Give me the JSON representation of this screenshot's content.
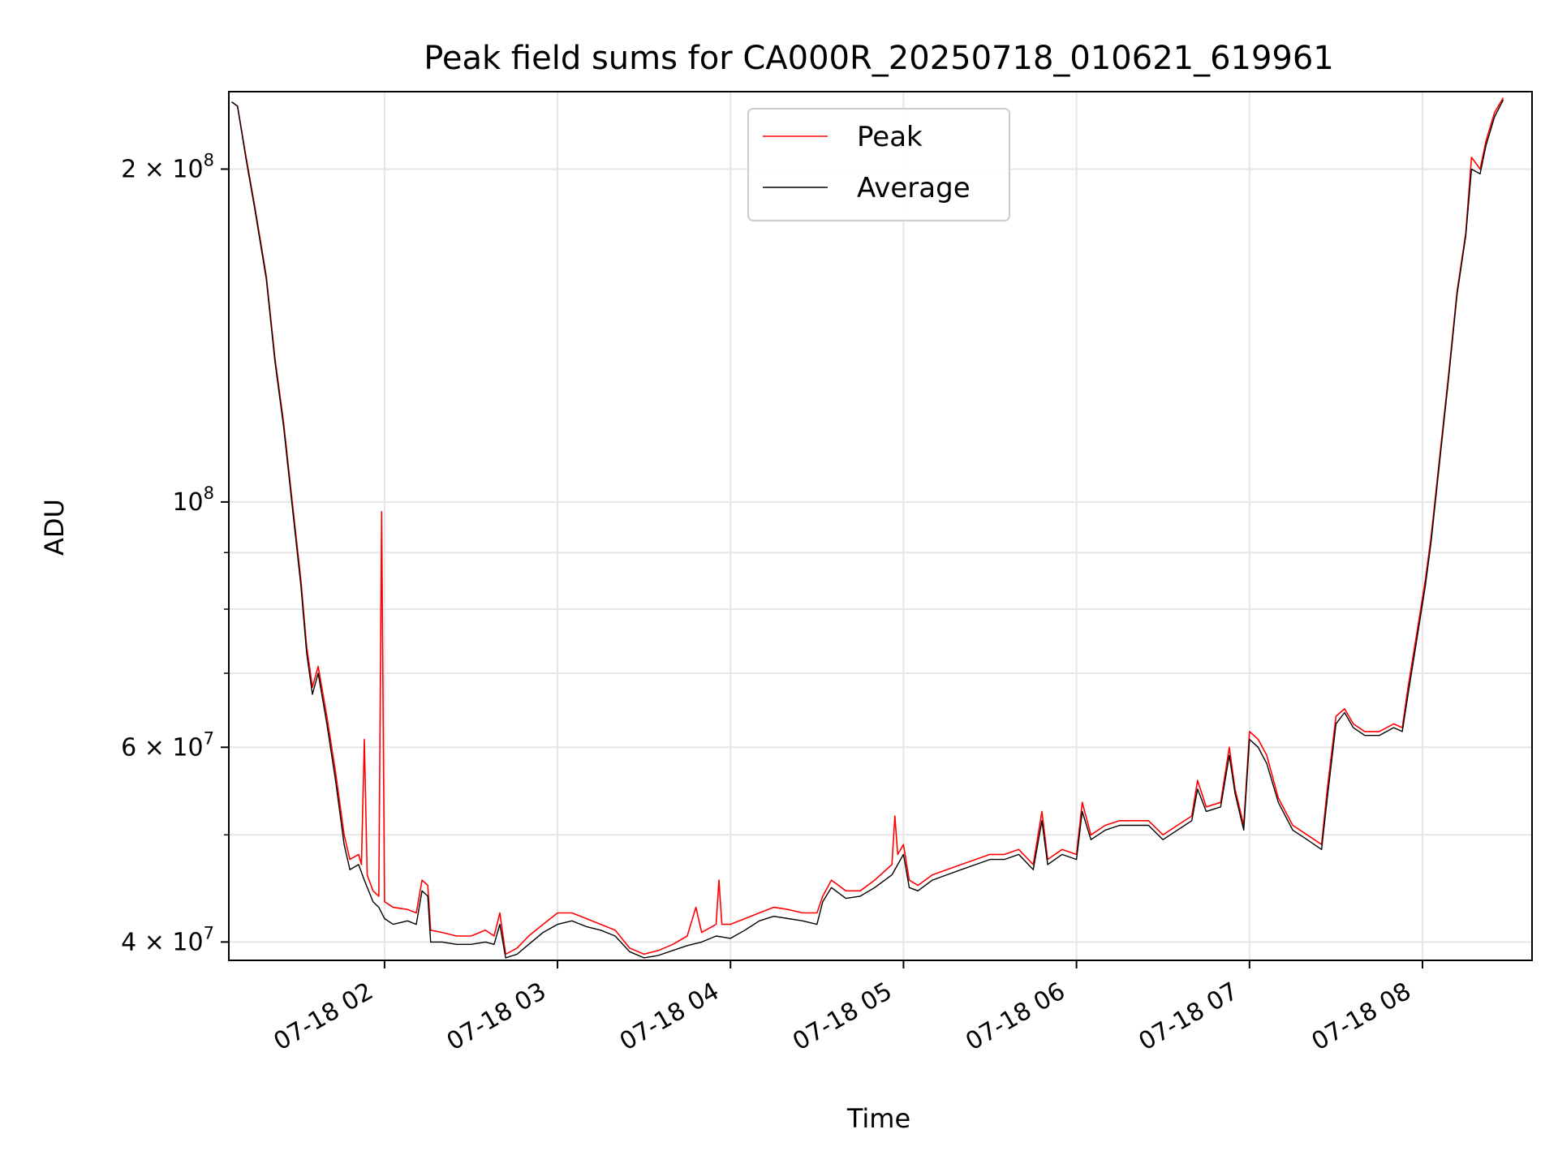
{
  "chart_data": {
    "type": "line",
    "title": "Peak field sums for CA000R_20250718_010621_619961",
    "xlabel": "Time",
    "ylabel": "ADU",
    "yscale": "log",
    "grid": true,
    "legend_position": "top-center",
    "xlim": [
      "2025-07-18 01:06",
      "2025-07-18 08:38"
    ],
    "ylim": [
      38500000,
      235000000
    ],
    "x_ticks": [
      "07-18 02",
      "07-18 03",
      "07-18 04",
      "07-18 05",
      "07-18 06",
      "07-18 07",
      "07-18 08"
    ],
    "y_ticks": [
      {
        "value": 40000000,
        "mantissa": "4",
        "exponent": "7"
      },
      {
        "value": 60000000,
        "mantissa": "6",
        "exponent": "7"
      },
      {
        "value": 100000000,
        "mantissa": "",
        "exponent": "8"
      },
      {
        "value": 200000000,
        "mantissa": "2",
        "exponent": "8"
      }
    ],
    "series": [
      {
        "name": "Peak",
        "color": "#ff0000",
        "points": [
          [
            "01:07",
            230000000
          ],
          [
            "01:09",
            228000000
          ],
          [
            "01:12",
            205000000
          ],
          [
            "01:15",
            185000000
          ],
          [
            "01:19",
            160000000
          ],
          [
            "01:22",
            135000000
          ],
          [
            "01:25",
            118000000
          ],
          [
            "01:28",
            100000000
          ],
          [
            "01:31",
            85000000
          ],
          [
            "01:33",
            74000000
          ],
          [
            "01:35",
            68000000
          ],
          [
            "01:37",
            71000000
          ],
          [
            "01:40",
            64000000
          ],
          [
            "01:43",
            57000000
          ],
          [
            "01:46",
            50000000
          ],
          [
            "01:48",
            47500000
          ],
          [
            "01:51",
            48000000
          ],
          [
            "01:52",
            47000000
          ],
          [
            "01:53",
            61000000
          ],
          [
            "01:54",
            46000000
          ],
          [
            "01:56",
            44500000
          ],
          [
            "01:58",
            44000000
          ],
          [
            "01:59",
            98000000
          ],
          [
            "02:00",
            43500000
          ],
          [
            "02:03",
            43000000
          ],
          [
            "02:08",
            42800000
          ],
          [
            "02:11",
            42500000
          ],
          [
            "02:13",
            45500000
          ],
          [
            "02:15",
            45000000
          ],
          [
            "02:16",
            41000000
          ],
          [
            "02:20",
            40800000
          ],
          [
            "02:25",
            40500000
          ],
          [
            "02:30",
            40500000
          ],
          [
            "02:35",
            41000000
          ],
          [
            "02:38",
            40500000
          ],
          [
            "02:40",
            42500000
          ],
          [
            "02:42",
            39000000
          ],
          [
            "02:46",
            39500000
          ],
          [
            "02:50",
            40500000
          ],
          [
            "02:55",
            41500000
          ],
          [
            "03:00",
            42500000
          ],
          [
            "03:05",
            42500000
          ],
          [
            "03:10",
            42000000
          ],
          [
            "03:15",
            41500000
          ],
          [
            "03:20",
            41000000
          ],
          [
            "03:25",
            39500000
          ],
          [
            "03:30",
            39000000
          ],
          [
            "03:35",
            39300000
          ],
          [
            "03:40",
            39800000
          ],
          [
            "03:45",
            40500000
          ],
          [
            "03:48",
            43000000
          ],
          [
            "03:50",
            40800000
          ],
          [
            "03:55",
            41500000
          ],
          [
            "03:56",
            45500000
          ],
          [
            "03:57",
            41500000
          ],
          [
            "04:00",
            41500000
          ],
          [
            "04:05",
            42000000
          ],
          [
            "04:10",
            42500000
          ],
          [
            "04:15",
            43000000
          ],
          [
            "04:20",
            42800000
          ],
          [
            "04:25",
            42500000
          ],
          [
            "04:30",
            42500000
          ],
          [
            "04:32",
            44000000
          ],
          [
            "04:35",
            45500000
          ],
          [
            "04:40",
            44500000
          ],
          [
            "04:45",
            44500000
          ],
          [
            "04:50",
            45500000
          ],
          [
            "04:56",
            47000000
          ],
          [
            "04:57",
            52000000
          ],
          [
            "04:58",
            48000000
          ],
          [
            "05:00",
            49000000
          ],
          [
            "05:02",
            45500000
          ],
          [
            "05:05",
            45000000
          ],
          [
            "05:10",
            46000000
          ],
          [
            "05:15",
            46500000
          ],
          [
            "05:20",
            47000000
          ],
          [
            "05:25",
            47500000
          ],
          [
            "05:30",
            48000000
          ],
          [
            "05:35",
            48000000
          ],
          [
            "05:40",
            48500000
          ],
          [
            "05:45",
            47000000
          ],
          [
            "05:48",
            52500000
          ],
          [
            "05:50",
            47500000
          ],
          [
            "05:55",
            48500000
          ],
          [
            "06:00",
            48000000
          ],
          [
            "06:02",
            53500000
          ],
          [
            "06:05",
            50000000
          ],
          [
            "06:10",
            51000000
          ],
          [
            "06:15",
            51500000
          ],
          [
            "06:20",
            51500000
          ],
          [
            "06:25",
            51500000
          ],
          [
            "06:30",
            50000000
          ],
          [
            "06:35",
            51000000
          ],
          [
            "06:40",
            52000000
          ],
          [
            "06:42",
            56000000
          ],
          [
            "06:45",
            53000000
          ],
          [
            "06:50",
            53500000
          ],
          [
            "06:53",
            60000000
          ],
          [
            "06:55",
            55000000
          ],
          [
            "06:58",
            51000000
          ],
          [
            "07:00",
            62000000
          ],
          [
            "07:03",
            61000000
          ],
          [
            "07:06",
            59000000
          ],
          [
            "07:10",
            54000000
          ],
          [
            "07:15",
            51000000
          ],
          [
            "07:20",
            50000000
          ],
          [
            "07:25",
            49000000
          ],
          [
            "07:27",
            55000000
          ],
          [
            "07:30",
            64000000
          ],
          [
            "07:33",
            65000000
          ],
          [
            "07:36",
            63000000
          ],
          [
            "07:40",
            62000000
          ],
          [
            "07:45",
            62000000
          ],
          [
            "07:50",
            63000000
          ],
          [
            "07:53",
            62500000
          ],
          [
            "07:55",
            68000000
          ],
          [
            "07:58",
            76000000
          ],
          [
            "08:01",
            85000000
          ],
          [
            "08:03",
            93000000
          ],
          [
            "08:06",
            110000000
          ],
          [
            "08:09",
            130000000
          ],
          [
            "08:12",
            155000000
          ],
          [
            "08:15",
            175000000
          ],
          [
            "08:17",
            205000000
          ],
          [
            "08:20",
            200000000
          ],
          [
            "08:22",
            212000000
          ],
          [
            "08:25",
            225000000
          ],
          [
            "08:28",
            232000000
          ]
        ]
      },
      {
        "name": "Average",
        "color": "#000000",
        "points": [
          [
            "01:07",
            230000000
          ],
          [
            "01:09",
            228000000
          ],
          [
            "01:12",
            204000000
          ],
          [
            "01:15",
            184000000
          ],
          [
            "01:19",
            159000000
          ],
          [
            "01:22",
            134000000
          ],
          [
            "01:25",
            117000000
          ],
          [
            "01:28",
            99000000
          ],
          [
            "01:31",
            84000000
          ],
          [
            "01:33",
            73000000
          ],
          [
            "01:35",
            67000000
          ],
          [
            "01:37",
            70000000
          ],
          [
            "01:40",
            63000000
          ],
          [
            "01:43",
            56000000
          ],
          [
            "01:46",
            49000000
          ],
          [
            "01:48",
            46500000
          ],
          [
            "01:51",
            47000000
          ],
          [
            "01:53",
            45500000
          ],
          [
            "01:56",
            43500000
          ],
          [
            "01:58",
            43000000
          ],
          [
            "02:00",
            42000000
          ],
          [
            "02:03",
            41500000
          ],
          [
            "02:08",
            41800000
          ],
          [
            "02:11",
            41500000
          ],
          [
            "02:13",
            44500000
          ],
          [
            "02:15",
            44000000
          ],
          [
            "02:16",
            40000000
          ],
          [
            "02:20",
            40000000
          ],
          [
            "02:25",
            39800000
          ],
          [
            "02:30",
            39800000
          ],
          [
            "02:35",
            40000000
          ],
          [
            "02:38",
            39800000
          ],
          [
            "02:40",
            41500000
          ],
          [
            "02:42",
            38700000
          ],
          [
            "02:46",
            39000000
          ],
          [
            "02:50",
            39800000
          ],
          [
            "02:55",
            40800000
          ],
          [
            "03:00",
            41500000
          ],
          [
            "03:05",
            41800000
          ],
          [
            "03:10",
            41300000
          ],
          [
            "03:15",
            41000000
          ],
          [
            "03:20",
            40500000
          ],
          [
            "03:25",
            39200000
          ],
          [
            "03:30",
            38700000
          ],
          [
            "03:35",
            38900000
          ],
          [
            "03:40",
            39300000
          ],
          [
            "03:45",
            39700000
          ],
          [
            "03:50",
            40000000
          ],
          [
            "03:55",
            40500000
          ],
          [
            "04:00",
            40300000
          ],
          [
            "04:05",
            41000000
          ],
          [
            "04:10",
            41800000
          ],
          [
            "04:15",
            42200000
          ],
          [
            "04:20",
            42000000
          ],
          [
            "04:25",
            41800000
          ],
          [
            "04:30",
            41500000
          ],
          [
            "04:32",
            43500000
          ],
          [
            "04:35",
            44800000
          ],
          [
            "04:40",
            43800000
          ],
          [
            "04:45",
            44000000
          ],
          [
            "04:50",
            44800000
          ],
          [
            "04:56",
            46000000
          ],
          [
            "04:58",
            47000000
          ],
          [
            "05:00",
            48000000
          ],
          [
            "05:02",
            44800000
          ],
          [
            "05:05",
            44500000
          ],
          [
            "05:10",
            45500000
          ],
          [
            "05:15",
            46000000
          ],
          [
            "05:20",
            46500000
          ],
          [
            "05:25",
            47000000
          ],
          [
            "05:30",
            47500000
          ],
          [
            "05:35",
            47500000
          ],
          [
            "05:40",
            48000000
          ],
          [
            "05:45",
            46500000
          ],
          [
            "05:48",
            51500000
          ],
          [
            "05:50",
            47000000
          ],
          [
            "05:55",
            48000000
          ],
          [
            "06:00",
            47500000
          ],
          [
            "06:02",
            52500000
          ],
          [
            "06:05",
            49500000
          ],
          [
            "06:10",
            50500000
          ],
          [
            "06:15",
            51000000
          ],
          [
            "06:20",
            51000000
          ],
          [
            "06:25",
            51000000
          ],
          [
            "06:30",
            49500000
          ],
          [
            "06:35",
            50500000
          ],
          [
            "06:40",
            51500000
          ],
          [
            "06:42",
            55000000
          ],
          [
            "06:45",
            52500000
          ],
          [
            "06:50",
            53000000
          ],
          [
            "06:53",
            59000000
          ],
          [
            "06:55",
            54500000
          ],
          [
            "06:58",
            50500000
          ],
          [
            "07:00",
            61000000
          ],
          [
            "07:03",
            60000000
          ],
          [
            "07:06",
            58000000
          ],
          [
            "07:10",
            53500000
          ],
          [
            "07:15",
            50500000
          ],
          [
            "07:20",
            49500000
          ],
          [
            "07:25",
            48500000
          ],
          [
            "07:27",
            54000000
          ],
          [
            "07:30",
            63000000
          ],
          [
            "07:33",
            64500000
          ],
          [
            "07:36",
            62500000
          ],
          [
            "07:40",
            61500000
          ],
          [
            "07:45",
            61500000
          ],
          [
            "07:50",
            62500000
          ],
          [
            "07:53",
            62000000
          ],
          [
            "07:55",
            67000000
          ],
          [
            "07:58",
            75000000
          ],
          [
            "08:01",
            84000000
          ],
          [
            "08:03",
            92000000
          ],
          [
            "08:06",
            109000000
          ],
          [
            "08:09",
            129000000
          ],
          [
            "08:12",
            154000000
          ],
          [
            "08:15",
            174000000
          ],
          [
            "08:17",
            200000000
          ],
          [
            "08:20",
            198000000
          ],
          [
            "08:22",
            210000000
          ],
          [
            "08:25",
            223000000
          ],
          [
            "08:28",
            231000000
          ]
        ]
      }
    ]
  }
}
